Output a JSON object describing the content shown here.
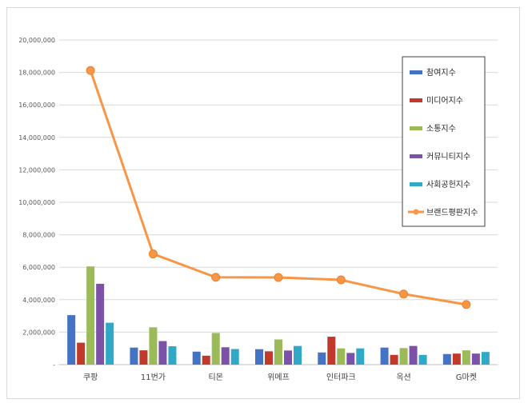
{
  "chart_data": {
    "type": "bar",
    "categories": [
      "쿠팡",
      "11번가",
      "티몬",
      "위메프",
      "인터파크",
      "옥션",
      "G마켓"
    ],
    "ylim": [
      0,
      20000000
    ],
    "yticks": [
      "-",
      "2,000,000",
      "4,000,000",
      "6,000,000",
      "8,000,000",
      "10,000,000",
      "12,000,000",
      "14,000,000",
      "16,000,000",
      "18,000,000",
      "20,000,000"
    ],
    "ytick_values": [
      0,
      2000000,
      4000000,
      6000000,
      8000000,
      10000000,
      12000000,
      14000000,
      16000000,
      18000000,
      20000000
    ],
    "grid": true,
    "legend_position": "right",
    "series": [
      {
        "name": "참여지수",
        "type": "bar",
        "color": "#4472c4",
        "values": [
          3050000,
          1050000,
          800000,
          950000,
          750000,
          1050000,
          650000
        ]
      },
      {
        "name": "미디어지수",
        "type": "bar",
        "color": "#c0392b",
        "values": [
          1350000,
          880000,
          550000,
          820000,
          1720000,
          600000,
          680000
        ]
      },
      {
        "name": "소통지수",
        "type": "bar",
        "color": "#9bbb59",
        "values": [
          6050000,
          2300000,
          1950000,
          1550000,
          1000000,
          1020000,
          880000
        ]
      },
      {
        "name": "커뮤니티지수",
        "type": "bar",
        "color": "#7b52a8",
        "values": [
          4980000,
          1450000,
          1070000,
          870000,
          720000,
          1150000,
          680000
        ]
      },
      {
        "name": "사회공헌지수",
        "type": "bar",
        "color": "#31a9c6",
        "values": [
          2580000,
          1130000,
          960000,
          1150000,
          1000000,
          600000,
          780000
        ]
      },
      {
        "name": "브랜드평판지수",
        "type": "line",
        "color": "#f79646",
        "values": [
          18120000,
          6820000,
          5380000,
          5370000,
          5220000,
          4350000,
          3700000
        ]
      }
    ]
  }
}
